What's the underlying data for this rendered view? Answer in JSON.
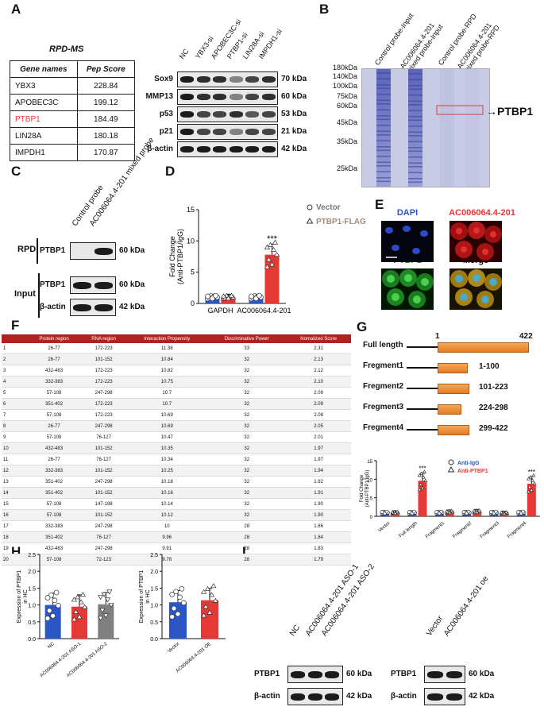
{
  "panels": {
    "A": "A",
    "B": "B",
    "C": "C",
    "D": "D",
    "E": "E",
    "F": "F",
    "G": "G",
    "H": "H",
    "I": "I"
  },
  "panelA": {
    "table_title": "RPD-MS",
    "headers": [
      "Gene names",
      "Pep Score"
    ],
    "rows": [
      {
        "gene": "YBX3",
        "score": "228.84"
      },
      {
        "gene": "APOBEC3C",
        "score": "199.12"
      },
      {
        "gene": "PTBP1",
        "score": "184.49",
        "highlight": "#e53935"
      },
      {
        "gene": "LIN28A",
        "score": "180.18"
      },
      {
        "gene": "IMPDH1",
        "score": "170.87"
      }
    ],
    "lanes": [
      "NC",
      "YBX3-si",
      "APOBEC3C-si",
      "PTBP1-si",
      "LIN28A-si",
      "IMPDH1-si"
    ],
    "blots": [
      {
        "protein": "Sox9",
        "kda": "70 kDa"
      },
      {
        "protein": "MMP13",
        "kda": "60 kDa"
      },
      {
        "protein": "p53",
        "kda": "53 kDa"
      },
      {
        "protein": "p21",
        "kda": "21 kDa"
      },
      {
        "protein": "β-actin",
        "kda": "42 kDa"
      }
    ]
  },
  "panelB": {
    "lanes": [
      "Control probe-Input",
      "AC006064.4-201 mixed probe-Input",
      "Control probe-RPD",
      "AC006064.4-201 mixed probe-RPD"
    ],
    "markers": [
      "180kDa",
      "140kDa",
      "100kDa",
      "75kDa",
      "60kDa",
      "45kDa",
      "35kDa",
      "25kDa"
    ],
    "arrow_label": "PTBP1"
  },
  "panelC": {
    "lanes": [
      "Control probe",
      "AC006064.4-201 mixed  probe"
    ],
    "group_rpd": "RPD",
    "group_input": "Input",
    "blots": [
      {
        "protein": "PTBP1",
        "kda": "60 kDa"
      },
      {
        "protein": "PTBP1",
        "kda": "60 kDa"
      },
      {
        "protein": "β-actin",
        "kda": "42 kDa"
      }
    ]
  },
  "panelD": {
    "chart_data": {
      "type": "bar",
      "categories": [
        "GAPDH",
        "AC006064.4-201"
      ],
      "series": [
        {
          "name": "Vector",
          "values": [
            1.0,
            1.0
          ],
          "color": "#2b56c6"
        },
        {
          "name": "PTBP1-FLAG",
          "values": [
            1.0,
            7.8
          ],
          "color": "#e53935"
        }
      ],
      "ylabel": "Fold Change (Anti-PTBP1/IgG)",
      "ylim": [
        0,
        15
      ],
      "yticks": [
        0,
        5,
        10,
        15
      ],
      "annotation": "***"
    }
  },
  "panelE": {
    "labels": [
      "DAPI",
      "AC006064.4-201",
      "PTBP1",
      "Merge"
    ]
  },
  "panelF": {
    "headers": [
      "Protein region",
      "RNA region",
      "Interaction Propensity",
      "Discriminative Power",
      "Nomalized Score"
    ],
    "rows": [
      [
        "1",
        "26-77",
        "172-223",
        "11.38",
        "33",
        "2.31"
      ],
      [
        "2",
        "26-77",
        "101-152",
        "10.84",
        "32",
        "2.13"
      ],
      [
        "3",
        "432-483",
        "172-223",
        "10.82",
        "32",
        "2.12"
      ],
      [
        "4",
        "332-383",
        "172-223",
        "10.75",
        "32",
        "2.10"
      ],
      [
        "5",
        "57-108",
        "247-298",
        "10.7",
        "32",
        "2.09"
      ],
      [
        "6",
        "351-402",
        "172-223",
        "10.7",
        "32",
        "2.09"
      ],
      [
        "7",
        "57-108",
        "172-223",
        "10.69",
        "32",
        "2.08"
      ],
      [
        "8",
        "26-77",
        "247-298",
        "10.69",
        "32",
        "2.05"
      ],
      [
        "9",
        "57-108",
        "76-127",
        "10.47",
        "32",
        "2.01"
      ],
      [
        "10",
        "432-483",
        "101-152",
        "10.35",
        "32",
        "1.97"
      ],
      [
        "11",
        "26-77",
        "76-127",
        "10.34",
        "32",
        "1.97"
      ],
      [
        "12",
        "332-383",
        "101-152",
        "10.25",
        "32",
        "1.94"
      ],
      [
        "13",
        "351-402",
        "247-298",
        "10.18",
        "32",
        "1.92"
      ],
      [
        "14",
        "351-402",
        "101-152",
        "10.16",
        "32",
        "1.91"
      ],
      [
        "15",
        "57-108",
        "147-198",
        "10.14",
        "32",
        "1.90"
      ],
      [
        "16",
        "57-108",
        "101-152",
        "10.12",
        "32",
        "1.90"
      ],
      [
        "17",
        "332-383",
        "247-298",
        "10",
        "28",
        "1.86"
      ],
      [
        "18",
        "351-402",
        "76-127",
        "9.96",
        "28",
        "1.84"
      ],
      [
        "19",
        "432-483",
        "247-298",
        "9.91",
        "28",
        "1.83"
      ],
      [
        "20",
        "57-108",
        "72-123",
        "9.78",
        "28",
        "1.79"
      ]
    ]
  },
  "panelG": {
    "start": "1",
    "end": "422",
    "fragments": [
      {
        "label": "Full length",
        "range": "",
        "from": 1,
        "to": 422
      },
      {
        "label": "Fregment1",
        "range": "1-100",
        "from": 1,
        "to": 100
      },
      {
        "label": "Fregment2",
        "range": "101-223",
        "from": 101,
        "to": 223
      },
      {
        "label": "Fregment3",
        "range": "224-298",
        "from": 224,
        "to": 298
      },
      {
        "label": "Fregment4",
        "range": "299-422",
        "from": 299,
        "to": 422
      }
    ],
    "chart_data": {
      "type": "bar",
      "categories": [
        "Vector",
        "Full length",
        "Fragment1",
        "Fragment2",
        "Fragment3",
        "Fragment4"
      ],
      "series": [
        {
          "name": "Anti-IgG",
          "values": [
            1.0,
            1.0,
            1.0,
            1.0,
            1.0,
            1.0
          ],
          "color": "#2b56c6"
        },
        {
          "name": "Anti-PTBP1",
          "values": [
            1.0,
            9.6,
            1.2,
            1.3,
            0.9,
            8.8
          ],
          "color": "#e53935"
        }
      ],
      "ylabel": "Fold Change (Anti-PTBP1/IgG)",
      "ylim": [
        0,
        15
      ],
      "yticks": [
        0,
        5,
        10,
        15
      ],
      "annotation": "***"
    }
  },
  "panelH": {
    "chart_data": [
      {
        "type": "bar",
        "categories": [
          "NC",
          "AC006064.4-201 ASO-1",
          "AC006064.4-201 ASO-2"
        ],
        "values": [
          1.0,
          0.95,
          1.02
        ],
        "colors": [
          "#2b56c6",
          "#e53935",
          "#808080"
        ],
        "ylabel": "Expression of PTBP1 in HC",
        "ylim": [
          0,
          2.5
        ],
        "yticks": [
          "0.0",
          "0.5",
          "1.0",
          "1.5",
          "2.0",
          "2.5"
        ]
      },
      {
        "type": "bar",
        "categories": [
          "Vector",
          "AC006064.4-201 OE"
        ],
        "values": [
          1.08,
          1.14
        ],
        "colors": [
          "#2b56c6",
          "#e53935"
        ],
        "ylabel": "Expression of PTBP1 in HC",
        "ylim": [
          0,
          2.5
        ],
        "yticks": [
          "0.0",
          "0.5",
          "1.0",
          "1.5",
          "2.0",
          "2.5"
        ]
      }
    ]
  },
  "panelI": {
    "lanes_left": [
      "NC",
      "AC006064.4-201 ASO-1",
      "AC006064.4-201 ASO-2"
    ],
    "lanes_right": [
      "Vector",
      "AC006064.4-201 oe"
    ],
    "blots": [
      {
        "protein": "PTBP1",
        "kda": "60 kDa"
      },
      {
        "protein": "β-actin",
        "kda": "42 kDa"
      }
    ]
  }
}
